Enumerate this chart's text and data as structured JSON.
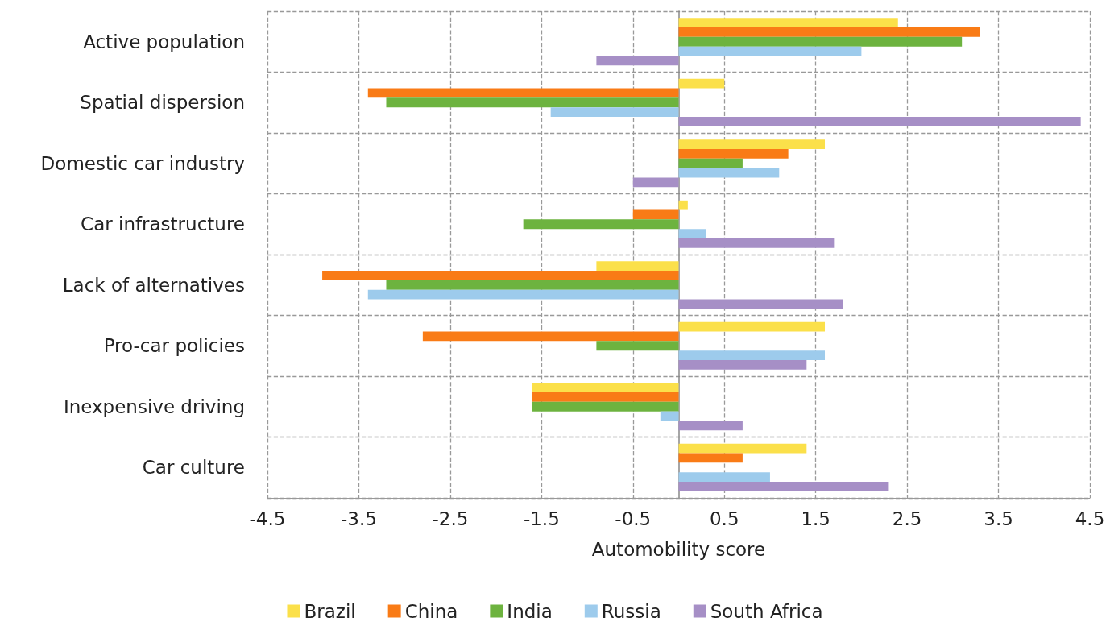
{
  "chart_data": {
    "type": "bar",
    "orientation": "horizontal",
    "xlabel": "Automobility score",
    "categories": [
      "Active population",
      "Spatial dispersion",
      "Domestic car industry",
      "Car infrastructure",
      "Lack of alternatives",
      "Pro-car policies",
      "Inexpensive driving",
      "Car culture"
    ],
    "series": [
      {
        "name": "Brazil",
        "color": "#fbe04a",
        "values": [
          2.4,
          0.5,
          1.6,
          0.1,
          -0.9,
          1.6,
          -1.6,
          1.4
        ]
      },
      {
        "name": "China",
        "color": "#f97b16",
        "values": [
          3.3,
          -3.4,
          1.2,
          -0.5,
          -3.9,
          -2.8,
          -1.6,
          0.7
        ]
      },
      {
        "name": "India",
        "color": "#6db33f",
        "values": [
          3.1,
          -3.2,
          0.7,
          -1.7,
          -3.2,
          -0.9,
          -1.6,
          null
        ]
      },
      {
        "name": "Russia",
        "color": "#9dcbec",
        "values": [
          2.0,
          -1.4,
          1.1,
          0.3,
          -3.4,
          1.6,
          -0.2,
          1.0
        ]
      },
      {
        "name": "South Africa",
        "color": "#a68fc6",
        "values": [
          -0.9,
          4.4,
          -0.5,
          1.7,
          1.8,
          1.4,
          0.7,
          2.3
        ]
      }
    ],
    "xlim": [
      -4.5,
      4.5
    ],
    "xticks": [
      -4.5,
      -3.5,
      -2.5,
      -1.5,
      -0.5,
      0.5,
      1.5,
      2.5,
      3.5,
      4.5
    ],
    "grid": true,
    "legend": "bottom"
  }
}
